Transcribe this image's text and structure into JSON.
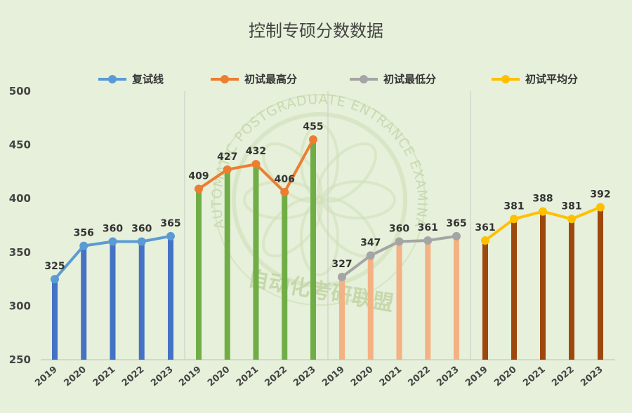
{
  "chart_data": {
    "type": "line",
    "title": "控制专硕分数数据",
    "ylim": [
      250,
      500
    ],
    "yticks": [
      250,
      300,
      350,
      400,
      450,
      500
    ],
    "grid": false,
    "legend": "top",
    "watermark_text": "AUTOMATIC POSTGRADUATE ENTRANCE EXAMINATION ALLIANCE",
    "watermark_cn": "自动化考研联盟",
    "groups": [
      {
        "name": "复试线",
        "line_color": "#5b9bd5",
        "bar_color": "#4472c4",
        "categories": [
          "2019",
          "2020",
          "2021",
          "2022",
          "2023"
        ],
        "values": [
          325,
          356,
          360,
          360,
          365
        ]
      },
      {
        "name": "初试最高分",
        "line_color": "#ed7d31",
        "bar_color": "#70ad47",
        "categories": [
          "2019",
          "2020",
          "2021",
          "2022",
          "2023"
        ],
        "values": [
          409,
          427,
          432,
          406,
          455
        ]
      },
      {
        "name": "初试最低分",
        "line_color": "#a5a5a5",
        "bar_color": "#f4b183",
        "categories": [
          "2019",
          "2020",
          "2021",
          "2022",
          "2023"
        ],
        "values": [
          327,
          347,
          360,
          361,
          365
        ]
      },
      {
        "name": "初试平均分",
        "line_color": "#ffc000",
        "bar_color": "#9e480e",
        "categories": [
          "2019",
          "2020",
          "2021",
          "2022",
          "2023"
        ],
        "values": [
          361,
          381,
          388,
          381,
          392
        ]
      }
    ]
  }
}
